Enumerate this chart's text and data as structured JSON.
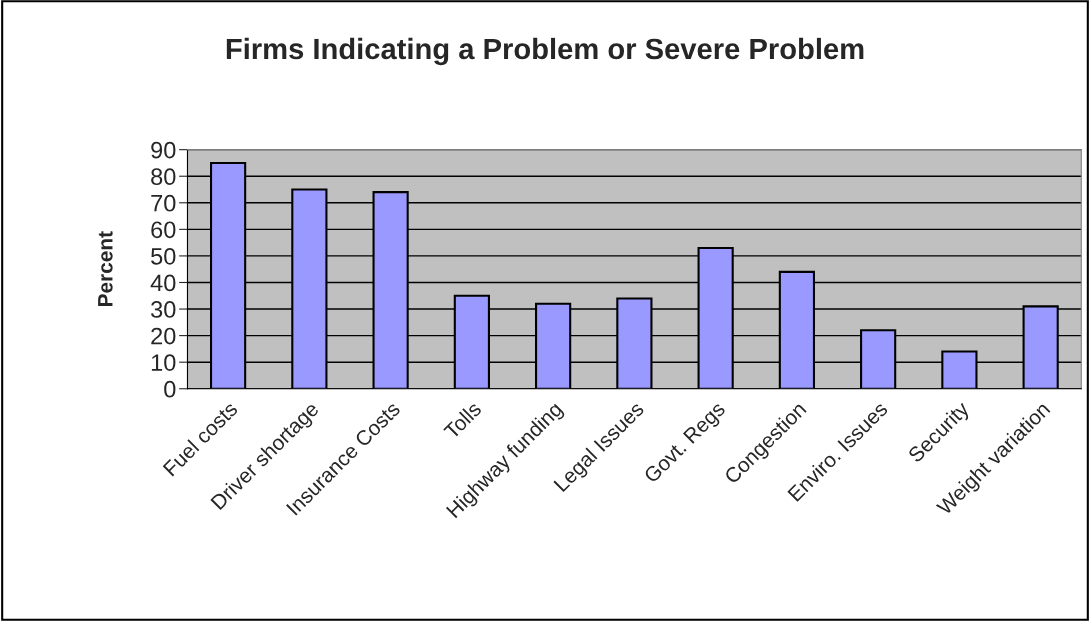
{
  "chart_data": {
    "type": "bar",
    "title": "Firms Indicating a Problem or Severe Problem",
    "ylabel": "Percent",
    "categories": [
      "Fuel costs",
      "Driver shortage",
      "Insurance Costs",
      "Tolls",
      "Highway funding",
      "Legal Issues",
      "Govt. Regs",
      "Congestion",
      "Enviro. Issues",
      "Security",
      "Weight variation"
    ],
    "values": [
      85,
      75,
      74,
      35,
      32,
      34,
      53,
      44,
      22,
      14,
      31
    ],
    "color": "#9999ff",
    "ylim": [
      0,
      90
    ],
    "yticks": [
      0,
      10,
      20,
      30,
      40,
      50,
      60,
      70,
      80,
      90
    ],
    "grid": "y"
  }
}
